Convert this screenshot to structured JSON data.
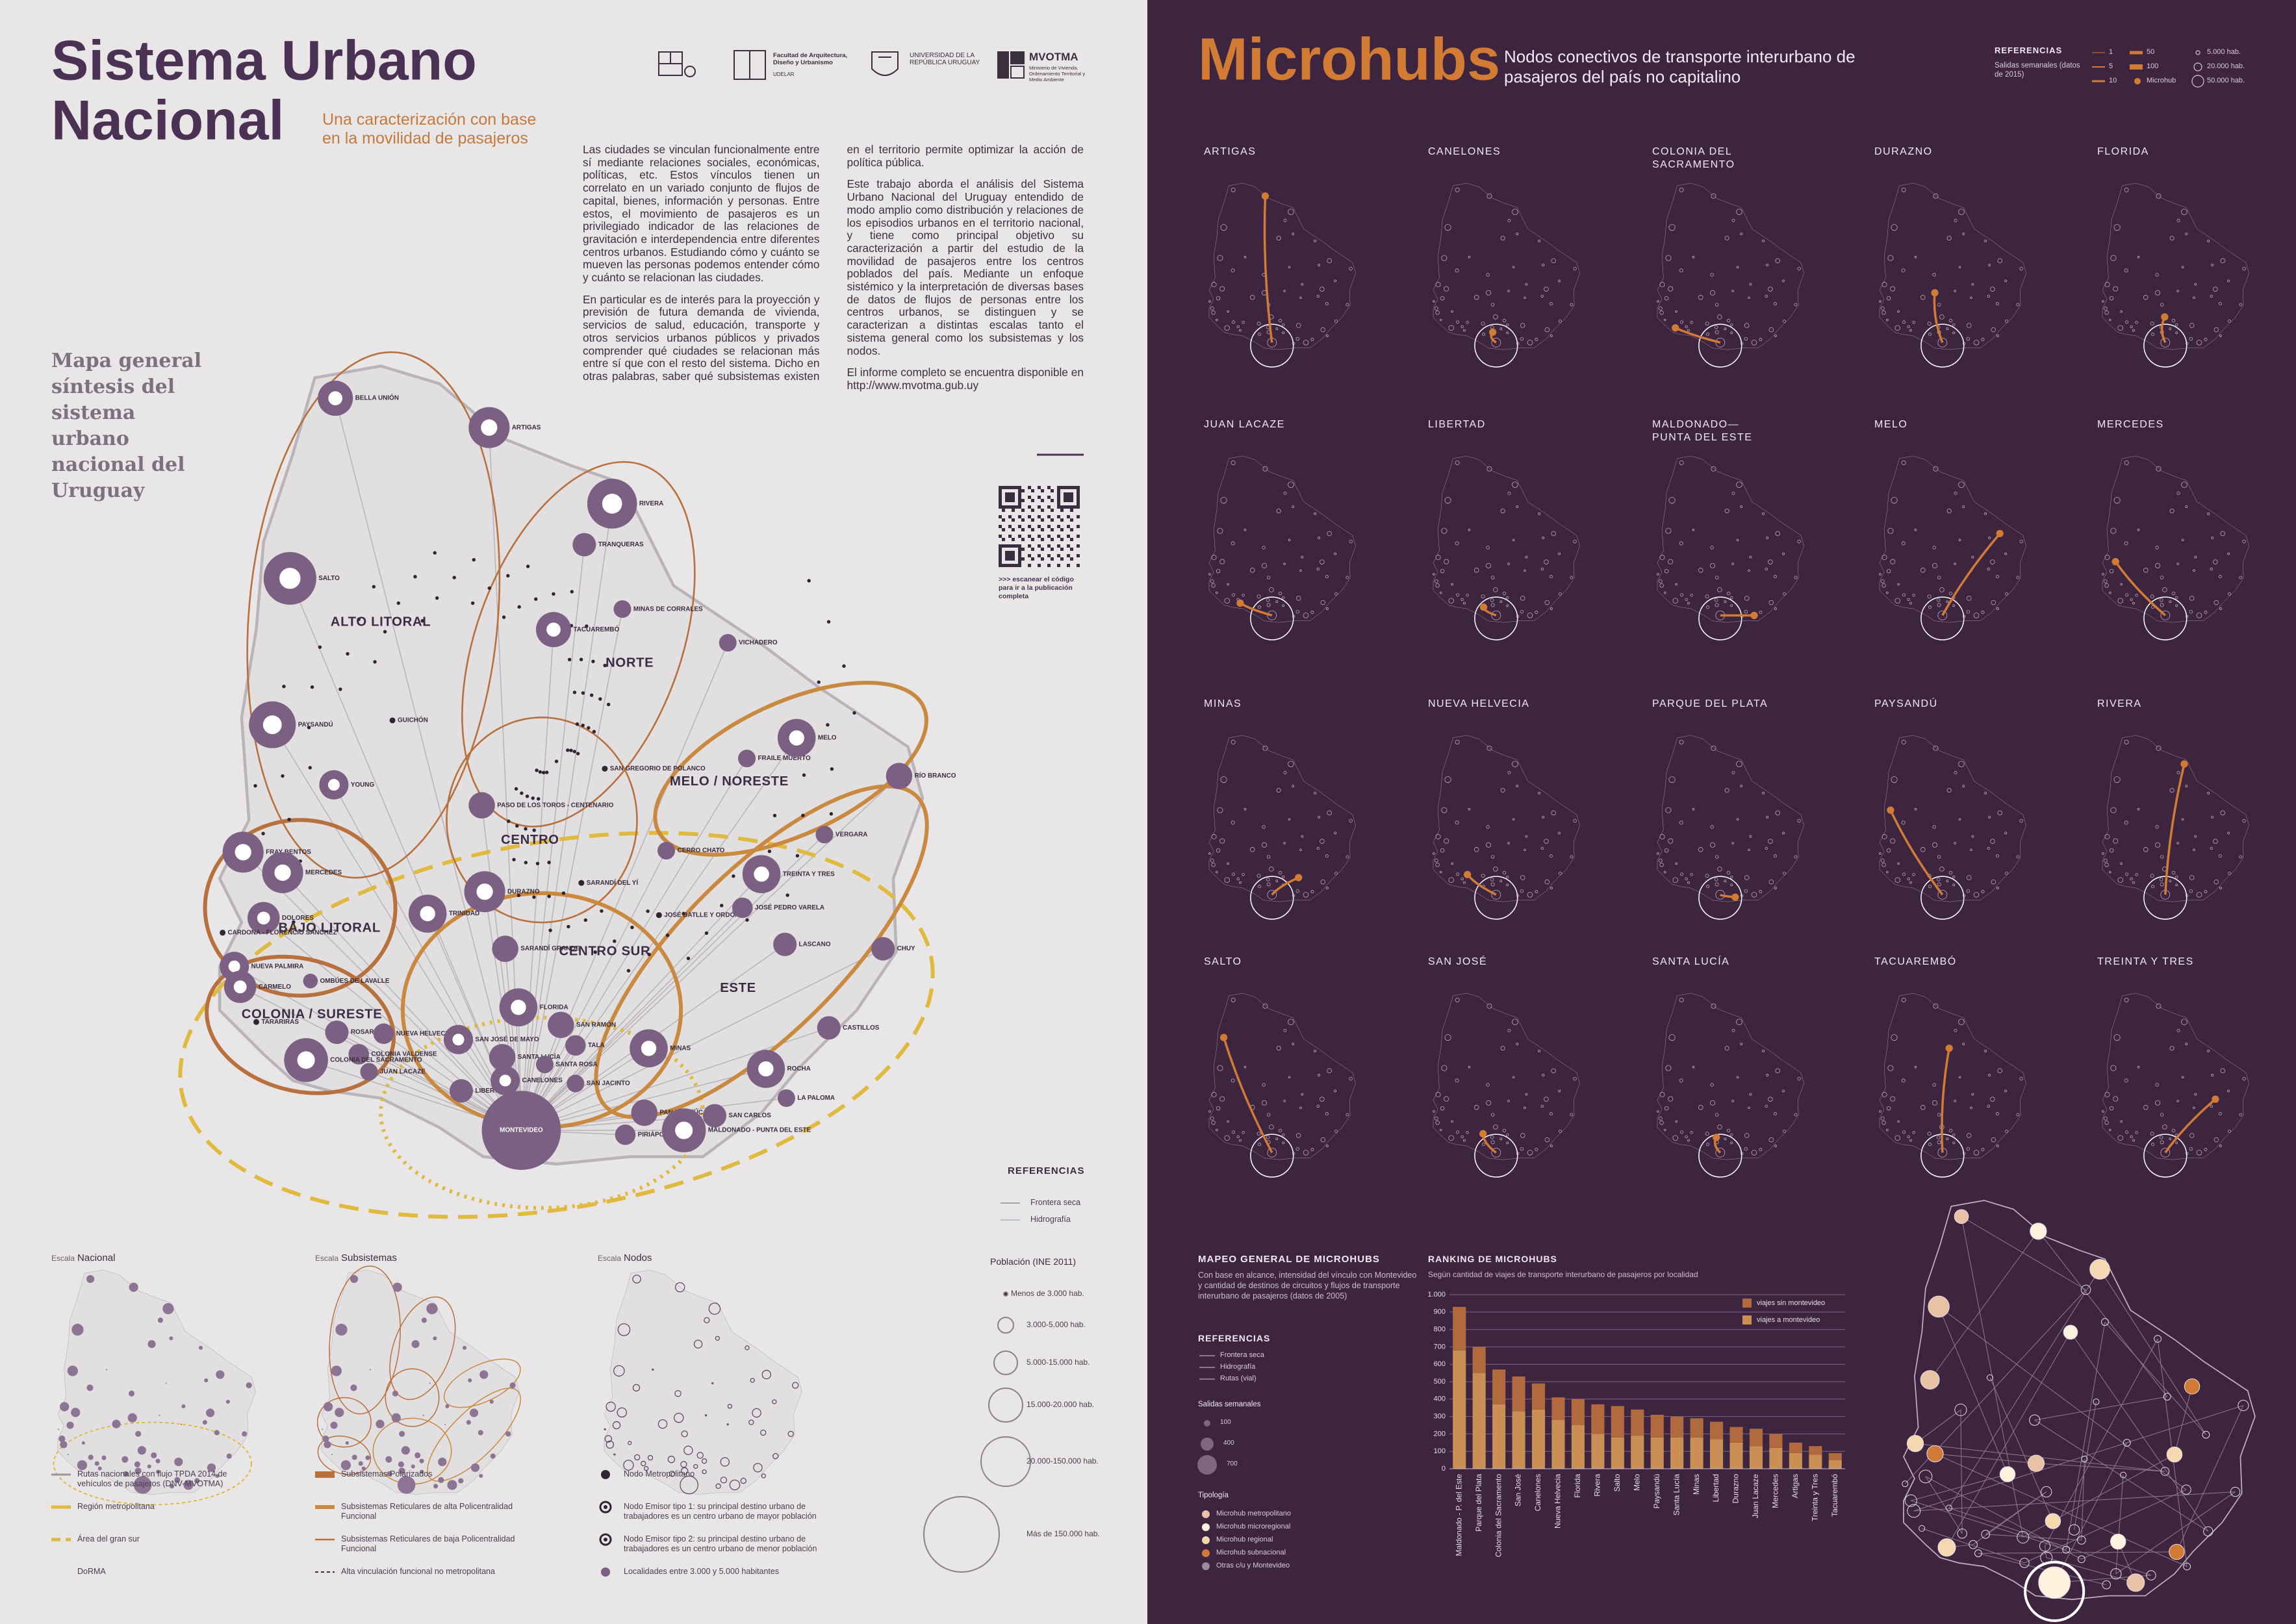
{
  "left": {
    "title_lines": [
      "Sistema Urbano",
      "Nacional"
    ],
    "subtitle": "Una caracterización con base en la movilidad de pasajeros",
    "logos": [
      "Facultad de Arquitectura, Diseño y Urbanismo",
      "UDELAR",
      "UNIVERSIDAD DE LA REPÚBLICA URUGUAY",
      "MVOTMA",
      "Ministerio de Vivienda, Ordenamiento Territorial y Medio Ambiente"
    ],
    "paragraphs": [
      "Las ciudades se vinculan funcionalmente entre sí mediante relaciones sociales, económicas, políticas, etc. Estos vínculos tienen un correlato en un variado conjunto de flujos de capital, bienes, información y personas. Entre estos, el movimiento de pasajeros es un privilegiado indicador de las relaciones de gravitación e interdependencia entre diferentes centros urbanos. Estudiando cómo y cuánto se mueven las personas podemos entender cómo y cuánto se relacionan las ciudades.",
      "En particular es de interés para la proyección y previsión de futura demanda de vivienda, servicios de salud, educación, transporte y otros servicios urbanos públicos y privados comprender qué ciudades se relacionan más entre sí que con el resto del sistema. Dicho en otras palabras, saber qué subsistemas existen en el territorio permite optimizar la acción de política pública.",
      "Este trabajo aborda el análisis del Sistema Urbano Nacional del Uruguay entendido de modo amplio como distribución y relaciones de los episodios urbanos en el territorio nacional, y tiene como principal objetivo su caracterización a partir del estudio de la movilidad de pasajeros entre los centros poblados del país. Mediante un enfoque sistémico y la interpretación de diversas bases de datos de flujos de personas entre los centros urbanos, se distinguen y se caracterizan a distintas escalas tanto el sistema general como los subsistemas y los nodos.",
      "El informe completo se encuentra disponible en http://www.mvotma.gub.uy"
    ],
    "qr_caption": ">>> escanear el código para ir a la publicación completa",
    "map_title": "Mapa general síntesis del sistema urbano nacional del Uruguay",
    "regions": [
      "ALTO LITORAL",
      "NORTE",
      "MELO / NORESTE",
      "CENTRO",
      "BAJO LITORAL",
      "CENTRO SUR",
      "ESTE",
      "COLONIA / SURESTE"
    ],
    "cities": [
      "BELLA UNIÓN",
      "ARTIGAS",
      "RIVERA",
      "TRANQUERAS",
      "SALTO",
      "TACUAREMBÓ",
      "MINAS DE CORRALES",
      "VICHADERO",
      "PAYSANDÚ",
      "GUICHÓN",
      "FRAILE MUERTO",
      "MELO",
      "RÍO BRANCO",
      "YOUNG",
      "SAN GREGORIO DE POLANCO",
      "PASO DE LOS TOROS - CENTENARIO",
      "CERRO CHATO",
      "VERGARA",
      "FRAY BENTOS",
      "MERCEDES",
      "DURAZNO",
      "SARANDÍ DEL YÍ",
      "TREINTA Y TRES",
      "DOLORES",
      "CARDONA - FLORENCIO SÁNCHEZ",
      "TRINIDAD",
      "JOSÉ BATLLE Y ORDÓÑEZ",
      "JOSÉ PEDRO VARELA",
      "NUEVA PALMIRA",
      "CARMELO",
      "SARANDÍ GRANDE",
      "LASCANO",
      "CHUY",
      "OMBÚES DE LAVALLE",
      "FLORIDA",
      "TARARIRAS",
      "ROSARIO",
      "COLONIA VALDENSE",
      "COLONIA DEL SACRAMENTO",
      "NUEVA HELVECIA",
      "JUAN LACAZE",
      "SAN JOSÉ DE MAYO",
      "SANTA LUCÍA",
      "SAN RAMÓN",
      "TALA",
      "SANTA ROSA",
      "LIBERTAD",
      "CANELONES",
      "SAN JACINTO",
      "MINAS",
      "CASTILLOS",
      "ROCHA",
      "LA PALOMA",
      "PAN DE AZÚCAR",
      "SAN CARLOS",
      "PIRIÁPOLIS",
      "MALDONADO - PUNTA DEL ESTE",
      "MONTEVIDEO"
    ],
    "references": {
      "title": "REFERENCIAS",
      "items": [
        "Frontera seca",
        "Hidrografía"
      ]
    },
    "population": {
      "title": "Población (INE 2011)",
      "items": [
        "Menos de 3.000 hab.",
        "3.000-5.000 hab.",
        "5.000-15.000 hab.",
        "15.000-20.000 hab.",
        "20.000-150.000 hab.",
        "Más de 150.000 hab."
      ]
    },
    "scales": [
      {
        "label": "Escala",
        "name": "Nacional",
        "legend": [
          "Rutas nacionales con flujo TPDA 2014 de vehículos de pasajeros (DNV-MVOTMA)",
          "Región metropolitana",
          "Área del gran sur",
          "DoRMA"
        ]
      },
      {
        "label": "Escala",
        "name": "Subsistemas",
        "legend": [
          "Subsistemas Polarizados",
          "Subsistemas Reticulares de alta Policentralidad Funcional",
          "Subsistemas Reticulares de baja Policentralidad Funcional",
          "Alta vinculación funcional no metropolitana"
        ]
      },
      {
        "label": "Escala",
        "name": "Nodos",
        "legend": [
          "Nodo Metropolitano",
          "Nodo Emisor tipo 1: su principal destino urbano de trabajadores es un centro urbano de mayor población",
          "Nodo Emisor tipo 2: su principal destino urbano de trabajadores es un centro urbano de menor población",
          "Localidades entre 3.000 y 5.000 habitantes"
        ]
      }
    ]
  },
  "right": {
    "title": "Microhubs",
    "subtitle": "Nodos conectivos de transporte interurbano de pasajeros del país no capitalino",
    "references": {
      "title": "REFERENCIAS",
      "subtitle": "Salidas semanales (datos de 2015)",
      "items": [
        "1",
        "5",
        "10",
        "50",
        "100",
        "Microhub",
        "5.000 hab.",
        "20.000 hab.",
        "50.000 hab."
      ]
    },
    "microhubs": [
      "ARTIGAS",
      "CANELONES",
      "COLONIA DEL SACRAMENTO",
      "DURAZNO",
      "FLORIDA",
      "JUAN LACAZE",
      "LIBERTAD",
      "MALDONADO— PUNTA DEL ESTE",
      "MELO",
      "MERCEDES",
      "MINAS",
      "NUEVA HELVECIA",
      "PARQUE DEL PLATA",
      "PAYSANDÚ",
      "RIVERA",
      "SALTO",
      "SAN JOSÉ",
      "SANTA LUCÍA",
      "TACUAREMBÓ",
      "TREINTA Y TRES"
    ],
    "mapping": {
      "title": "MAPEO GENERAL DE MICROHUBS",
      "description": "Con base en alcance, intensidad del vínculo con Montevideo y cantidad de destinos de circuitos y flujos de transporte interurbano de pasajeros (datos de 2005)",
      "references_title": "REFERENCIAS",
      "references": [
        "Frontera seca",
        "Hidrografía",
        "Rutas (vial)"
      ],
      "salidas_title": "Salidas semanales",
      "salidas": [
        "100",
        "400",
        "700"
      ],
      "tipologia_title": "Tipología",
      "tipologia": [
        "Microhub metropolitano",
        "Microhub microregional",
        "Microhub regional",
        "Microhub subnacional",
        "Otras c/u y Montevideo"
      ]
    }
  },
  "chart_data": {
    "type": "bar",
    "title": "RANKING DE MICROHUBS",
    "subtitle": "Según cantidad de viajes de transporte interurbano de pasajeros por localidad",
    "categories": [
      "Maldonado - P. del Este",
      "Parque del Plata",
      "Colonia del Sacramento",
      "San José",
      "Canelones",
      "Nueva Helvecia",
      "Florida",
      "Rivera",
      "Salto",
      "Melo",
      "Paysandú",
      "Santa Lucía",
      "Minas",
      "Libertad",
      "Durazno",
      "Juan Lacaze",
      "Mercedes",
      "Artigas",
      "Treinta y Tres",
      "Tacuarembó"
    ],
    "series": [
      {
        "name": "viajes a montevideo",
        "color": "#c98f55",
        "values": [
          680,
          550,
          370,
          330,
          340,
          280,
          250,
          200,
          180,
          190,
          180,
          180,
          180,
          170,
          150,
          130,
          120,
          90,
          80,
          50
        ]
      },
      {
        "name": "viajes sin montevideo",
        "color": "#b06a3e",
        "values": [
          250,
          150,
          200,
          200,
          150,
          130,
          150,
          170,
          180,
          150,
          130,
          120,
          110,
          100,
          90,
          100,
          80,
          60,
          50,
          40
        ]
      }
    ],
    "stacked": true,
    "ylim": [
      0,
      1000
    ],
    "yticks": [
      0,
      100,
      200,
      300,
      400,
      500,
      600,
      700,
      800,
      900,
      {
        "value": 1000,
        "label": "1.000"
      }
    ],
    "grid": true,
    "legend": "upper right"
  }
}
